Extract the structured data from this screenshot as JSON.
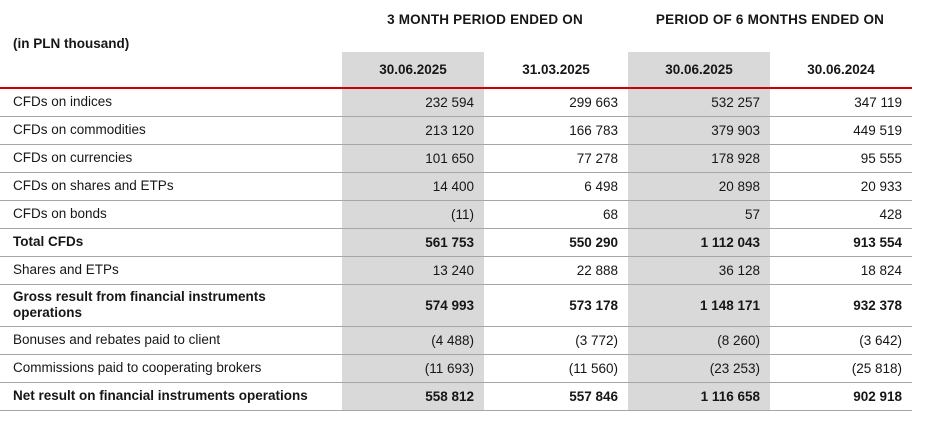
{
  "unit_label": "(in PLN thousand)",
  "column_groups": [
    {
      "label": "3 MONTH PERIOD ENDED ON"
    },
    {
      "label": "PERIOD OF 6 MONTHS ENDED ON"
    }
  ],
  "columns": [
    "30.06.2025",
    "31.03.2025",
    "30.06.2025",
    "30.06.2024"
  ],
  "colors": {
    "header_rule_red": "#cc0000",
    "highlight_column_gray": "#d9d9d9",
    "row_divider_gray": "#a6a6a6"
  },
  "rows": [
    {
      "label": "CFDs on indices",
      "values": [
        "232 594",
        "299 663",
        "532 257",
        "347 119"
      ]
    },
    {
      "label": "CFDs on commodities",
      "values": [
        "213 120",
        "166 783",
        "379 903",
        "449 519"
      ]
    },
    {
      "label": "CFDs on currencies",
      "values": [
        "101 650",
        "77 278",
        "178 928",
        "95 555"
      ]
    },
    {
      "label": "CFDs on shares and ETPs",
      "values": [
        "14 400",
        "6 498",
        "20 898",
        "20 933"
      ]
    },
    {
      "label": "CFDs on bonds",
      "values": [
        "(11)",
        "68",
        "57",
        "428"
      ]
    },
    {
      "label": "Total CFDs",
      "values": [
        "561 753",
        "550 290",
        "1 112 043",
        "913 554"
      ]
    },
    {
      "label": "Shares and ETPs",
      "values": [
        "13 240",
        "22 888",
        "36 128",
        "18 824"
      ]
    },
    {
      "label": "Gross result from financial instruments operations",
      "values": [
        "574 993",
        "573 178",
        "1 148 171",
        "932 378"
      ]
    },
    {
      "label": "Bonuses and rebates paid to client",
      "values": [
        "(4 488)",
        "(3 772)",
        "(8 260)",
        "(3 642)"
      ]
    },
    {
      "label": "Commissions paid to cooperating brokers",
      "values": [
        "(11 693)",
        "(11 560)",
        "(23 253)",
        "(25 818)"
      ]
    },
    {
      "label": "Net result on financial instruments operations",
      "values": [
        "558 812",
        "557 846",
        "1 116 658",
        "902 918"
      ]
    }
  ]
}
